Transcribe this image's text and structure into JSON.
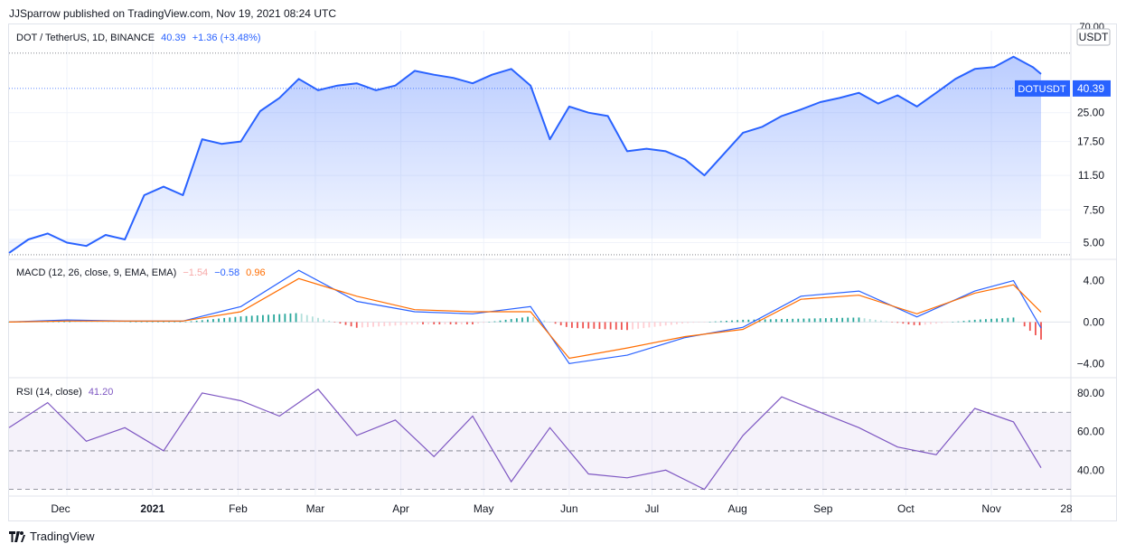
{
  "header": {
    "published": "JJSparrow published on TradingView.com, Nov 19, 2021 08:24 UTC"
  },
  "footer": {
    "brand": "TradingView"
  },
  "colors": {
    "price_line": "#2962ff",
    "macd_line": "#2962ff",
    "signal_line": "#ff6d00",
    "rsi_line": "#7e57c2",
    "hist_up_strong": "#26a69a",
    "hist_up_weak": "#b2dfdb",
    "hist_down_strong": "#ef5350",
    "hist_down_weak": "#ffcdd2"
  },
  "price_pane": {
    "symbol": "DOT / TetherUS, 1D, BINANCE",
    "last": "40.39",
    "change": "+1.36 (+3.48%)",
    "currency": "USDT",
    "edge_tick": "70.00",
    "tag_symbol": "DOTUSDT",
    "tag_price": "40.39",
    "ticks": [
      "25.00",
      "17.50",
      "11.50",
      "7.50",
      "5.00"
    ]
  },
  "macd_pane": {
    "label": "MACD (12, 26, close, 9, EMA, EMA)",
    "hist_val": "−1.54",
    "macd_val": "−0.58",
    "signal_val": "0.96",
    "ticks": [
      "4.00",
      "0.00",
      "−4.00"
    ]
  },
  "rsi_pane": {
    "label": "RSI (14, close)",
    "value": "41.20",
    "ticks": [
      "80.00",
      "60.00",
      "40.00"
    ]
  },
  "time_axis": [
    "Dec",
    "2021",
    "Feb",
    "Mar",
    "Apr",
    "May",
    "Jun",
    "Jul",
    "Aug",
    "Sep",
    "Oct",
    "Nov",
    "28"
  ],
  "chart_data": {
    "type": "line",
    "panes": [
      {
        "name": "price",
        "y_scale": "log",
        "ylim": [
          4.3,
          66
        ],
        "x_dates": [
          "2020-11-10",
          "2020-11-17",
          "2020-11-24",
          "2020-12-01",
          "2020-12-08",
          "2020-12-15",
          "2020-12-22",
          "2020-12-29",
          "2021-01-05",
          "2021-01-12",
          "2021-01-19",
          "2021-01-26",
          "2021-02-02",
          "2021-02-09",
          "2021-02-16",
          "2021-02-23",
          "2021-03-02",
          "2021-03-09",
          "2021-03-16",
          "2021-03-23",
          "2021-03-30",
          "2021-04-06",
          "2021-04-13",
          "2021-04-20",
          "2021-04-27",
          "2021-05-04",
          "2021-05-11",
          "2021-05-18",
          "2021-05-25",
          "2021-06-01",
          "2021-06-08",
          "2021-06-15",
          "2021-06-22",
          "2021-06-29",
          "2021-07-06",
          "2021-07-13",
          "2021-07-20",
          "2021-07-27",
          "2021-08-03",
          "2021-08-10",
          "2021-08-17",
          "2021-08-24",
          "2021-08-31",
          "2021-09-07",
          "2021-09-14",
          "2021-09-21",
          "2021-09-28",
          "2021-10-05",
          "2021-10-12",
          "2021-10-19",
          "2021-10-26",
          "2021-11-02",
          "2021-11-09",
          "2021-11-16",
          "2021-11-19"
        ],
        "values": [
          4.4,
          5.2,
          5.6,
          5.0,
          4.8,
          5.5,
          5.2,
          9.0,
          10.0,
          9.0,
          18.0,
          17.0,
          17.5,
          25.5,
          30.0,
          38.0,
          33.0,
          35.0,
          36.0,
          33.0,
          35.0,
          42.0,
          40.0,
          38.5,
          36.0,
          40.0,
          43.0,
          35.0,
          18.0,
          27.0,
          25.0,
          24.0,
          15.5,
          16.0,
          15.5,
          14.0,
          11.5,
          15.0,
          19.5,
          21.0,
          24.0,
          26.0,
          28.5,
          30.0,
          32.0,
          28.0,
          31.0,
          27.0,
          32.0,
          38.0,
          43.0,
          44.0,
          50.0,
          44.0,
          40.39
        ]
      },
      {
        "name": "MACD",
        "ylim": [
          -5.2,
          5.8
        ],
        "x_dates": [
          "2020-11-10",
          "2020-12-01",
          "2020-12-22",
          "2021-01-12",
          "2021-02-02",
          "2021-02-23",
          "2021-03-16",
          "2021-04-06",
          "2021-04-27",
          "2021-05-18",
          "2021-06-01",
          "2021-06-22",
          "2021-07-13",
          "2021-08-03",
          "2021-08-24",
          "2021-09-14",
          "2021-10-05",
          "2021-10-26",
          "2021-11-09",
          "2021-11-19"
        ],
        "series": [
          {
            "name": "MACD",
            "values": [
              0.0,
              0.2,
              0.1,
              0.1,
              1.5,
              5.0,
              2.0,
              1.0,
              0.8,
              1.5,
              -4.0,
              -3.2,
              -1.5,
              -0.5,
              2.5,
              3.0,
              0.5,
              3.0,
              4.0,
              -0.58
            ]
          },
          {
            "name": "Signal",
            "values": [
              0.0,
              0.1,
              0.1,
              0.1,
              1.0,
              4.2,
              2.5,
              1.2,
              1.0,
              1.0,
              -3.5,
              -2.5,
              -1.4,
              -0.7,
              2.2,
              2.6,
              0.8,
              2.8,
              3.6,
              0.96
            ]
          }
        ]
      },
      {
        "name": "RSI",
        "ylim": [
          27,
          87
        ],
        "bands": [
          70,
          50,
          30
        ],
        "x_dates": [
          "2020-11-10",
          "2020-11-24",
          "2020-12-08",
          "2020-12-22",
          "2021-01-05",
          "2021-01-19",
          "2021-02-02",
          "2021-02-16",
          "2021-03-02",
          "2021-03-16",
          "2021-03-30",
          "2021-04-13",
          "2021-04-27",
          "2021-05-11",
          "2021-05-25",
          "2021-06-08",
          "2021-06-22",
          "2021-07-06",
          "2021-07-20",
          "2021-08-03",
          "2021-08-17",
          "2021-08-31",
          "2021-09-14",
          "2021-09-28",
          "2021-10-12",
          "2021-10-26",
          "2021-11-09",
          "2021-11-19"
        ],
        "values": [
          62,
          75,
          55,
          62,
          50,
          80,
          76,
          68,
          82,
          58,
          66,
          47,
          68,
          34,
          62,
          38,
          36,
          40,
          30,
          58,
          78,
          70,
          62,
          52,
          48,
          72,
          65,
          41.2
        ]
      }
    ]
  }
}
